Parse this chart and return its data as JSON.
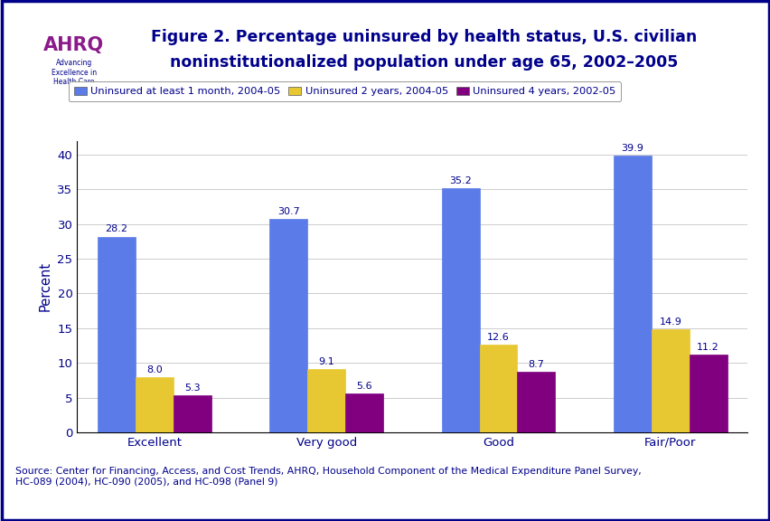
{
  "title_line1": "Figure 2. Percentage uninsured by health status, U.S. civilian",
  "title_line2": "noninstitutionalized population under age 65, 2002–2005",
  "categories": [
    "Excellent",
    "Very good",
    "Good",
    "Fair/Poor"
  ],
  "series": [
    {
      "label": "Uninsured at least 1 month, 2004-05",
      "values": [
        28.2,
        30.7,
        35.2,
        39.9
      ],
      "color": "#5B7BE8"
    },
    {
      "label": "Uninsured 2 years, 2004-05",
      "values": [
        8.0,
        9.1,
        12.6,
        14.9
      ],
      "color": "#E8C832"
    },
    {
      "label": "Uninsured 4 years, 2002-05",
      "values": [
        5.3,
        5.6,
        8.7,
        11.2
      ],
      "color": "#800080"
    }
  ],
  "ylabel": "Percent",
  "ylim": [
    0,
    42
  ],
  "yticks": [
    0,
    5,
    10,
    15,
    20,
    25,
    30,
    35,
    40
  ],
  "source_text": "Source: Center for Financing, Access, and Cost Trends, AHRQ, Household Component of the Medical Expenditure Panel Survey,\nHC-089 (2004), HC-090 (2005), and HC-098 (Panel 9)",
  "bar_width": 0.22,
  "background_color": "#FFFFFF",
  "title_color": "#00008B",
  "label_color": "#00008B",
  "border_color": "#00008B",
  "separator_color": "#00008B",
  "tick_color": "#00008B",
  "axis_label_color": "#00008B",
  "source_color": "#00008B",
  "header_box_color": "#5BA3C9",
  "grid_color": "#CCCCCC"
}
